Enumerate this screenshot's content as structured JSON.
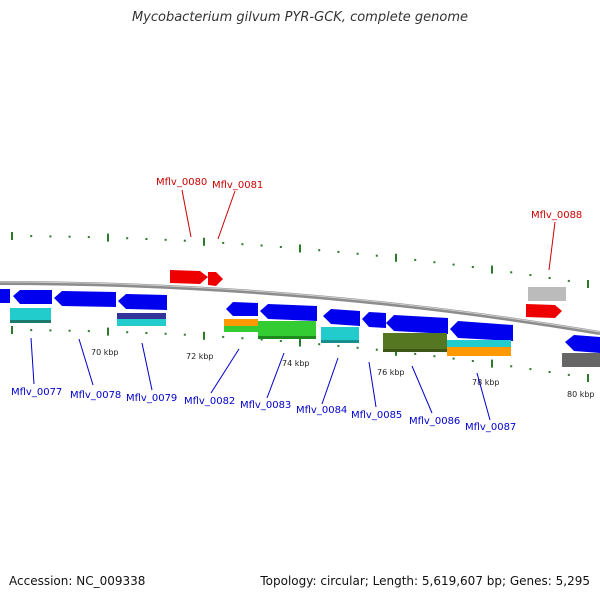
{
  "title": "Mycobacterium gilvum PYR-GCK, complete genome",
  "footer": {
    "accession": "Accession: NC_009338",
    "summary": "Topology: circular; Length: 5,619,607 bp; Genes: 5,295"
  },
  "colors": {
    "backbone": "#8c8c8c",
    "forward_label": "#cc0000",
    "reverse_label": "#0000cc",
    "tick": "#2a7a2a",
    "gene_blue": "#0000ee",
    "gene_red": "#ee0000",
    "gene_cyan": "#22cccc",
    "gene_green": "#33cc33",
    "gene_orange": "#ff9900",
    "gene_olive": "#557722",
    "gene_grey": "#666666",
    "gene_lightgrey": "#bbbbbb",
    "gene_navy": "#333399"
  },
  "scale_labels": [
    "70 kbp",
    "72 kbp",
    "74 kbp",
    "76 kbp",
    "78 kbp",
    "80 kbp"
  ],
  "forward_gene_labels": [
    "Mflv_0080",
    "Mflv_0081",
    "Mflv_0088"
  ],
  "reverse_gene_labels": [
    "Mflv_0077",
    "Mflv_0078",
    "Mflv_0079",
    "Mflv_0082",
    "Mflv_0083",
    "Mflv_0084",
    "Mflv_0085",
    "Mflv_0086",
    "Mflv_0087"
  ]
}
